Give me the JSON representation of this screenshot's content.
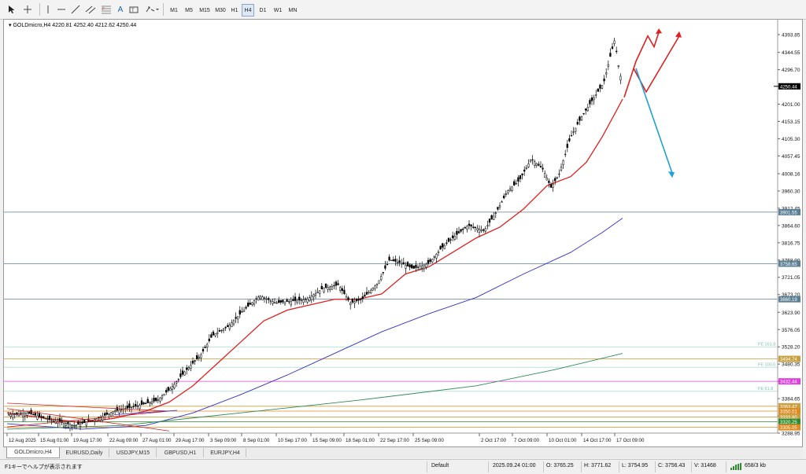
{
  "toolbar": {
    "timeframes": [
      "M1",
      "M5",
      "M15",
      "M30",
      "H1",
      "H4",
      "D1",
      "W1",
      "MN"
    ],
    "active_timeframe": "H4",
    "text_tool": "A"
  },
  "chart": {
    "header": "GOLDmicro,H4  4220.81 4252.40 4212.62 4250.44",
    "current_price": "4250.44",
    "price_labels": [
      "4393.85",
      "4344.55",
      "4296.70",
      "4201.00",
      "4153.15",
      "4105.30",
      "4057.45",
      "4008.16",
      "3960.30",
      "3912.45",
      "3864.60",
      "3816.75",
      "3768.90",
      "3721.05",
      "3673.20",
      "3623.90",
      "3576.05",
      "3528.20",
      "3480.35",
      "3432.50",
      "3384.65",
      "3336.80",
      "3288.95"
    ],
    "level_labels": [
      {
        "text": "3901.55",
        "color": "#5b7f95"
      },
      {
        "text": "3758.65",
        "color": "#5b7f95"
      },
      {
        "text": "3660.19",
        "color": "#5b7f95"
      },
      {
        "text": "3494.74",
        "color": "#c8a040"
      },
      {
        "text": "3432.44",
        "color": "#e040e0"
      },
      {
        "text": "3363.47",
        "color": "#c8a040"
      },
      {
        "text": "3350.01",
        "color": "#e08a20"
      },
      {
        "text": "3333.80",
        "color": "#c8a040"
      },
      {
        "text": "3320.25",
        "color": "#2e8b2e"
      },
      {
        "text": "3305.05",
        "color": "#e08a20"
      }
    ],
    "fib_labels": [
      "FE 161.8",
      "FE 100.0",
      "FE 61.8"
    ],
    "time_labels": [
      "12 Aug 2025",
      "15 Aug 01:00",
      "19 Aug 17:00",
      "22 Aug 09:00",
      "27 Aug 01:00",
      "29 Aug 17:00",
      "3 Sep 09:00",
      "8 Sep 01:00",
      "10 Sep 17:00",
      "15 Sep 09:00",
      "18 Sep 01:00",
      "22 Sep 17:00",
      "25 Sep 09:00",
      "2 Oct 17:00",
      "7 Oct 09:00",
      "10 Oct 01:00",
      "14 Oct 17:00",
      "17 Oct 09:00"
    ]
  },
  "tabs": [
    "GOLDmicro,H4",
    "EURUSD,Daily",
    "USDJPY,M15",
    "GBPUSD,H1",
    "EURJPY,H4"
  ],
  "active_tab": "GOLDmicro,H4",
  "status": {
    "help": "F1キーでヘルプが表示されます",
    "profile": "Default",
    "datetime": "2025.09.24 01:00",
    "open": "O: 3765.25",
    "high": "H: 3771.62",
    "low": "L: 3754.95",
    "close": "C: 3756.43",
    "volume": "V: 31468",
    "traffic": "658/3 kb"
  },
  "colors": {
    "bull_arrow": "#e02020",
    "bear_arrow": "#1ea0d8",
    "ma_fast": "#e02020",
    "ma_mid": "#3030d0",
    "ma_slow": "#2e8b57"
  }
}
